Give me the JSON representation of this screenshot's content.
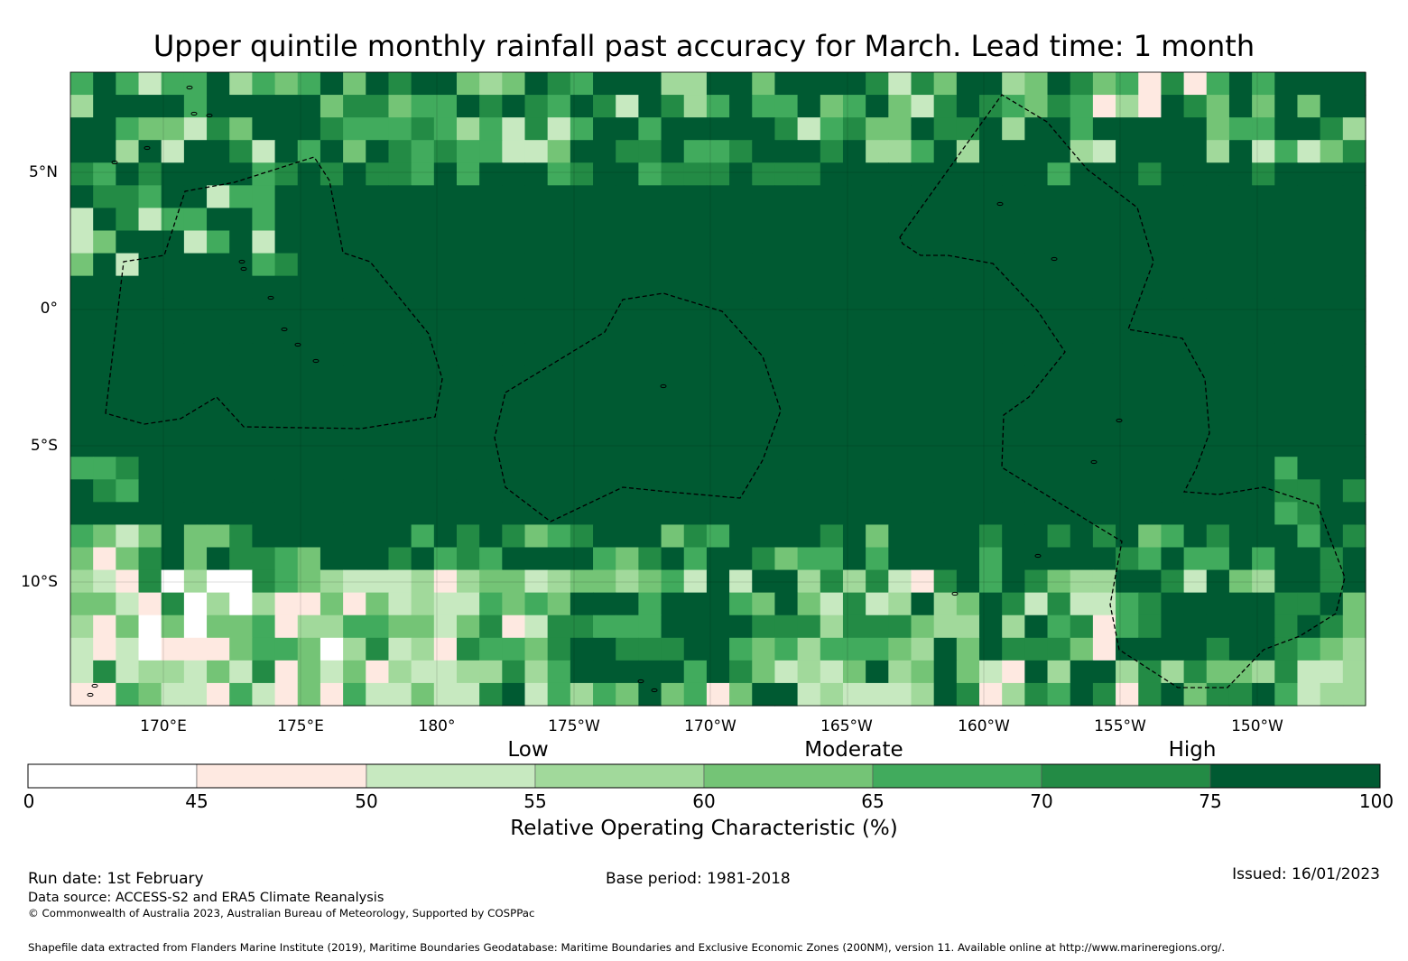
{
  "title": "Upper quintile monthly rainfall past accuracy for March. Lead time: 1 month",
  "map": {
    "lat_labels": [
      "5°N",
      "0°",
      "5°S",
      "10°S"
    ],
    "lon_labels": [
      "170°E",
      "175°E",
      "180°",
      "175°W",
      "170°W",
      "165°W",
      "160°W",
      "155°W",
      "150°W"
    ],
    "lon_range": [
      166.6,
      213.8
    ],
    "lat_range": [
      -14.4,
      8.7
    ],
    "grid_step_deg": 0.8333,
    "grid_lines": true,
    "zones_marked": "Maritime boundary EEZ lines (dashed)"
  },
  "legend": {
    "categories": [
      "Low",
      "Moderate",
      "High"
    ],
    "ticks": [
      "0",
      "45",
      "50",
      "55",
      "60",
      "65",
      "70",
      "75",
      "100"
    ],
    "colors": [
      "#ffffff",
      "#fee9e1",
      "#c7e9c0",
      "#a1d99b",
      "#74c476",
      "#41ab5d",
      "#238b45",
      "#005a32"
    ],
    "label": "Relative Operating Characteristic (%)"
  },
  "footer": {
    "run_date": "Run date: 1st February",
    "base_period": "Base period: 1981-2018",
    "issued": "Issued: 16/01/2023",
    "data_source": "Data source: ACCESS-S2 and ERA5 Climate Reanalysis",
    "copyright": "© Commonwealth of Australia 2023, Australian Bureau of Meteorology, Supported by COSPPac",
    "shapefile": "Shapefile data extracted from Flanders Marine Institute (2019), Maritime Boundaries Geodatabase: Maritime Boundaries and Exclusive Economic Zones (200NM), version 11. Available online at http://www.marineregions.org/."
  }
}
